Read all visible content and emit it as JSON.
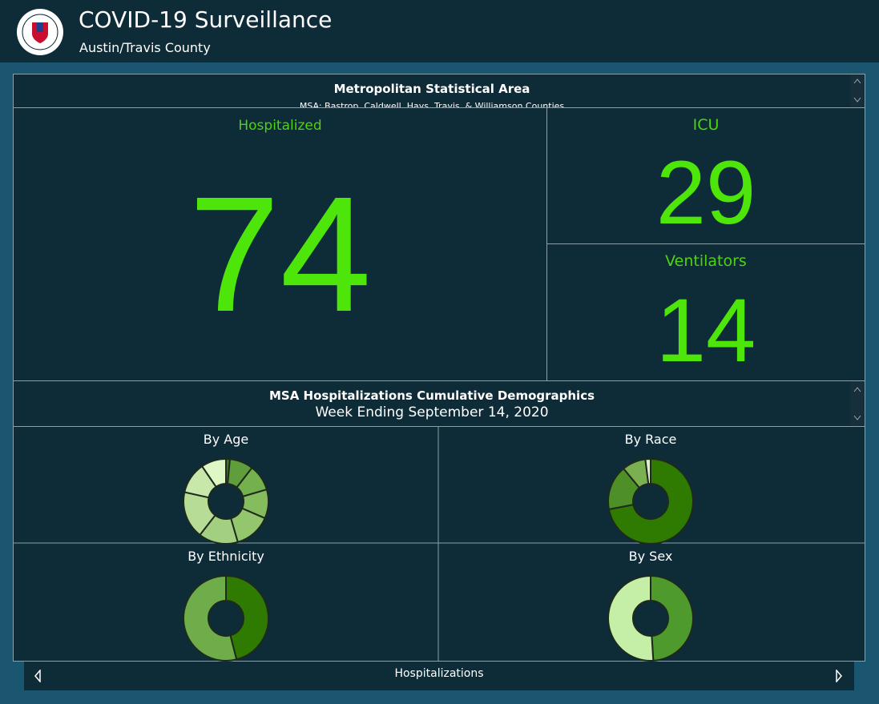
{
  "header": {
    "title": "COVID-19 Surveillance",
    "subtitle": "Austin/Travis County"
  },
  "msa": {
    "title": "Metropolitan Statistical Area",
    "subtitle": "MSA: Bastrop, Caldwell, Hays, Travis, & Williamson Counties"
  },
  "indicators": [
    {
      "label": "Hospitalized",
      "value": 74
    },
    {
      "label": "ICU",
      "value": 29
    },
    {
      "label": "Ventilators",
      "value": 14
    }
  ],
  "demographics": {
    "title": "MSA Hospitalizations Cumulative Demographics",
    "subtitle": "Week Ending September 14, 2020",
    "charts": [
      {
        "type": "pie",
        "title": "By Age",
        "values": [
          1.5,
          9,
          10,
          11,
          14,
          15,
          18,
          12,
          9.5
        ],
        "colors": [
          "#3a7a1e",
          "#5f9e3a",
          "#74b04c",
          "#85bd5e",
          "#93c66d",
          "#a3d080",
          "#b6dc96",
          "#c8e8ab",
          "#dff7c4"
        ]
      },
      {
        "type": "pie",
        "title": "By Race",
        "values": [
          72,
          17,
          9,
          2
        ],
        "colors": [
          "#2f7a00",
          "#4e8f27",
          "#7ab04f",
          "#dfeecf"
        ]
      },
      {
        "type": "pie",
        "title": "By Ethnicity",
        "values": [
          46,
          54
        ],
        "colors": [
          "#2f7a00",
          "#6fad4a"
        ]
      },
      {
        "type": "pie",
        "title": "By Sex",
        "values": [
          49,
          51
        ],
        "colors": [
          "#4f9a2d",
          "#c5efa6"
        ]
      }
    ]
  },
  "footer": {
    "label": "Hospitalizations"
  }
}
